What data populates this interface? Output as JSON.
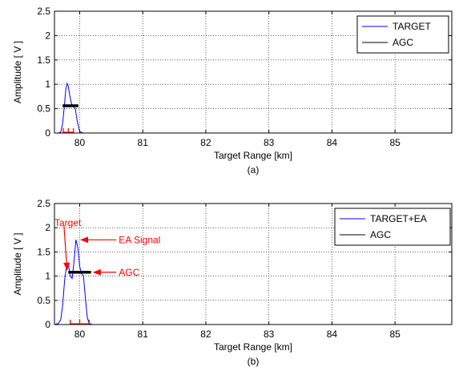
{
  "chart_data": [
    {
      "type": "line",
      "caption": "(a)",
      "xlabel": "Target Range [km]",
      "ylabel": "Amplitude [ V ]",
      "xlim": [
        79.6,
        85.9
      ],
      "ylim": [
        0,
        2.5
      ],
      "xticks": [
        80,
        81,
        82,
        83,
        84,
        85
      ],
      "xtick_labels": [
        "80",
        "81",
        "82",
        "83",
        "84",
        "85"
      ],
      "yticks": [
        0,
        0.5,
        1,
        1.5,
        2,
        2.5
      ],
      "ytick_labels": [
        "0",
        "0.5",
        "1",
        "1.5",
        "2",
        "2.5"
      ],
      "grid": true,
      "legend_position": "top-right",
      "series": [
        {
          "name": "TARGET",
          "color": "#0000ff",
          "x": [
            79.6,
            79.66,
            79.7,
            79.73,
            79.76,
            79.78,
            79.8,
            79.82,
            79.84,
            79.87,
            79.9,
            79.93,
            79.96,
            80.0,
            80.05,
            80.2
          ],
          "y": [
            0,
            0,
            0.02,
            0.2,
            0.6,
            0.9,
            1.02,
            0.96,
            0.78,
            0.6,
            0.55,
            0.5,
            0.25,
            0.03,
            0,
            0
          ]
        },
        {
          "name": "AGC",
          "color": "#000000",
          "x": [
            79.73,
            79.98
          ],
          "y": [
            0.56,
            0.56
          ]
        }
      ],
      "markers": {
        "color": "#ff0000",
        "x": [
          79.74,
          79.82,
          79.9
        ]
      },
      "annotations": []
    },
    {
      "type": "line",
      "caption": "(b)",
      "xlabel": "Target Range [km]",
      "ylabel": "Amplitude [ V ]",
      "xlim": [
        79.6,
        85.9
      ],
      "ylim": [
        0,
        2.5
      ],
      "xticks": [
        80,
        81,
        82,
        83,
        84,
        85
      ],
      "xtick_labels": [
        "80",
        "81",
        "82",
        "83",
        "84",
        "85"
      ],
      "yticks": [
        0,
        0.5,
        1,
        1.5,
        2,
        2.5
      ],
      "ytick_labels": [
        "0",
        "0.5",
        "1",
        "1.5",
        "2",
        "2.5"
      ],
      "grid": true,
      "legend_position": "top-right",
      "series": [
        {
          "name": "TARGET+EA",
          "color": "#0000ff",
          "x": [
            79.6,
            79.66,
            79.7,
            79.73,
            79.76,
            79.79,
            79.82,
            79.85,
            79.88,
            79.91,
            79.94,
            79.97,
            80.0,
            80.03,
            80.06,
            80.09,
            80.12,
            80.15,
            80.2,
            80.3
          ],
          "y": [
            0,
            0.02,
            0.1,
            0.4,
            0.9,
            1.2,
            1.25,
            1.0,
            0.95,
            1.3,
            1.75,
            1.6,
            1.2,
            1.05,
            1.0,
            0.55,
            0.15,
            0.02,
            0,
            0
          ]
        },
        {
          "name": "AGC",
          "color": "#000000",
          "x": [
            79.82,
            80.18
          ],
          "y": [
            1.08,
            1.08
          ]
        }
      ],
      "markers": {
        "color": "#ff0000",
        "x": [
          79.85,
          80.0,
          80.15
        ]
      },
      "annotations": [
        {
          "text": "Target",
          "color": "#ff0000",
          "label_x": 79.6,
          "label_y": 2.1,
          "arrow_from": [
            79.75,
            2.05
          ],
          "arrow_to": [
            79.8,
            1.13
          ]
        },
        {
          "text": "EA Signal",
          "color": "#ff0000",
          "label_x": 80.62,
          "label_y": 1.75,
          "arrow_from": [
            80.58,
            1.75
          ],
          "arrow_to": [
            80.02,
            1.75
          ]
        },
        {
          "text": "AGC",
          "color": "#ff0000",
          "label_x": 80.62,
          "label_y": 1.08,
          "arrow_from": [
            80.58,
            1.08
          ],
          "arrow_to": [
            80.22,
            1.08
          ]
        }
      ]
    }
  ]
}
